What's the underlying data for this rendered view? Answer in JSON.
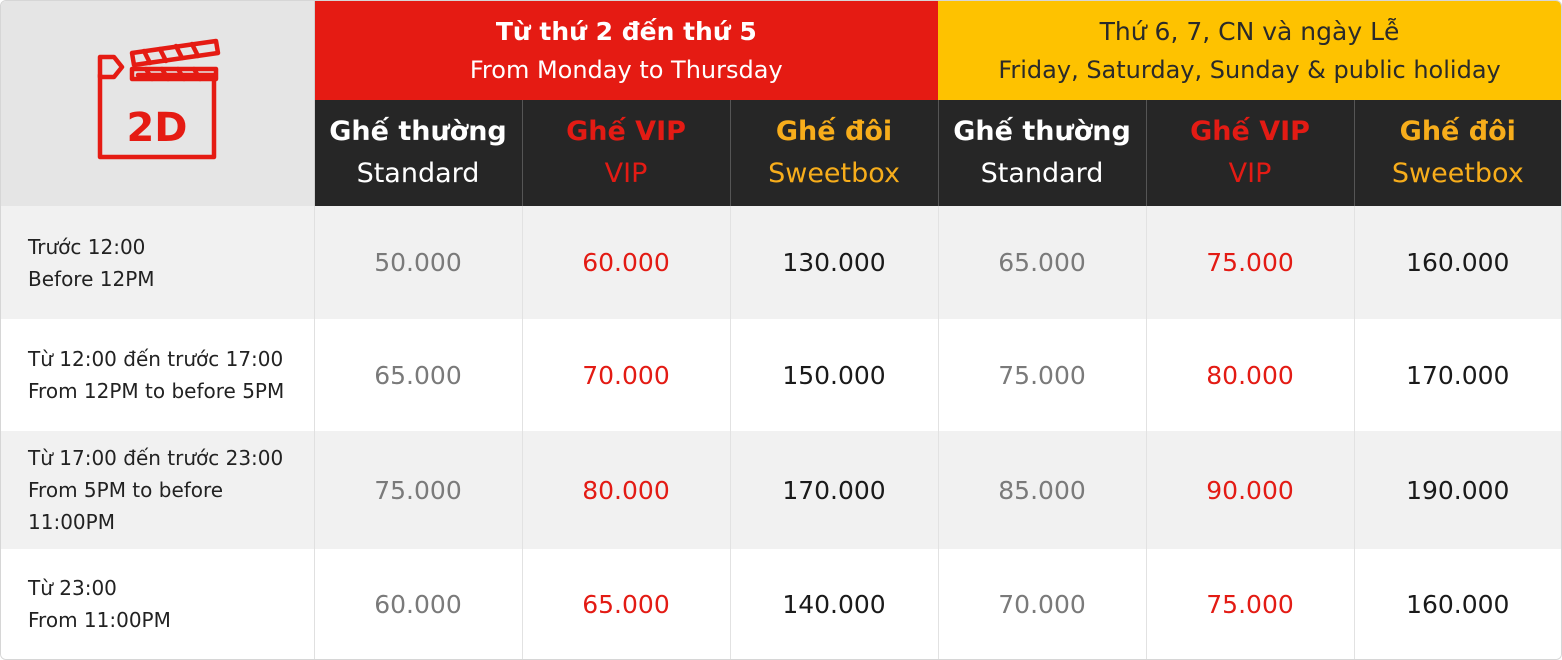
{
  "logo": {
    "icon": "clapperboard-2d-icon",
    "label": "2D",
    "color": "#e51b13"
  },
  "groups": [
    {
      "vi": "Từ thứ 2 đến thứ 5",
      "en": "From Monday to Thursday",
      "color": "#e51b13"
    },
    {
      "vi": "Thứ 6, 7, CN và ngày Lễ",
      "en": "Friday, Saturday, Sunday & public holiday",
      "color": "#fec200"
    }
  ],
  "seat_types": [
    {
      "vi": "Ghế thường",
      "en": "Standard"
    },
    {
      "vi": "Ghế VIP",
      "en": "VIP"
    },
    {
      "vi": "Ghế đôi",
      "en": "Sweetbox"
    },
    {
      "vi": "Ghế thường",
      "en": "Standard"
    },
    {
      "vi": "Ghế VIP",
      "en": "VIP"
    },
    {
      "vi": "Ghế đôi",
      "en": "Sweetbox"
    }
  ],
  "rows": [
    {
      "vi": "Trước 12:00",
      "en": "Before 12PM",
      "prices": [
        "50.000",
        "60.000",
        "130.000",
        "65.000",
        "75.000",
        "160.000"
      ]
    },
    {
      "vi": "Từ 12:00 đến trước 17:00",
      "en": "From 12PM to before 5PM",
      "prices": [
        "65.000",
        "70.000",
        "150.000",
        "75.000",
        "80.000",
        "170.000"
      ]
    },
    {
      "vi": "Từ 17:00 đến trước 23:00",
      "en": "From 5PM to before 11:00PM",
      "prices": [
        "75.000",
        "80.000",
        "170.000",
        "85.000",
        "90.000",
        "190.000"
      ]
    },
    {
      "vi": "Từ 23:00",
      "en": "From 11:00PM",
      "prices": [
        "60.000",
        "65.000",
        "140.000",
        "70.000",
        "75.000",
        "160.000"
      ]
    }
  ],
  "colors": {
    "standard": "#7a7a7a",
    "vip": "#e31b14",
    "sweetbox": "#f7ad1b",
    "header_dark": "#262626"
  }
}
